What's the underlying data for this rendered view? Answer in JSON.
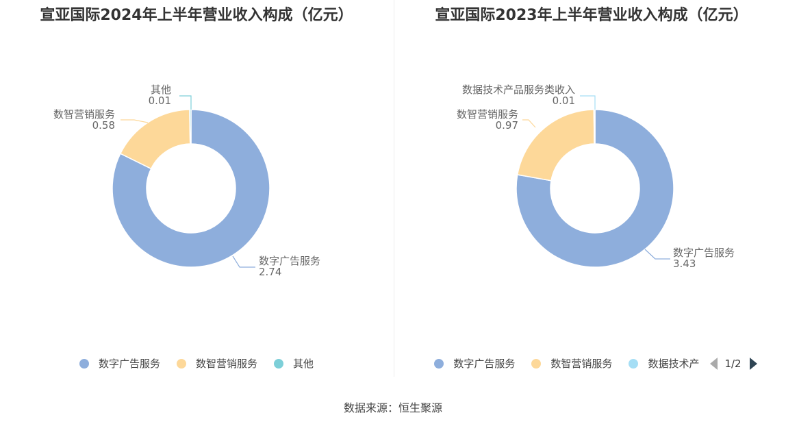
{
  "source": "数据来源：恒生聚源",
  "chart_data": [
    {
      "type": "pie",
      "title": "宣亚国际2024年上半年营业收入构成（亿元）",
      "categories": [
        "数字广告服务",
        "数智营销服务",
        "其他"
      ],
      "values": [
        2.74,
        0.58,
        0.01
      ],
      "value_labels": [
        "2.74",
        "0.58",
        "0.01"
      ],
      "colors": [
        "#8eaedc",
        "#fdd899",
        "#7dcfd8"
      ],
      "legend": [
        "数字广告服务",
        "数智营销服务",
        "其他"
      ],
      "legend_position": "bottom"
    },
    {
      "type": "pie",
      "title": "宣亚国际2023年上半年营业收入构成（亿元）",
      "categories": [
        "数字广告服务",
        "数智营销服务",
        "数据技术产品服务类收入"
      ],
      "values": [
        3.43,
        0.97,
        0.01
      ],
      "value_labels": [
        "3.43",
        "0.97",
        "0.01"
      ],
      "colors": [
        "#8eaedc",
        "#fdd899",
        "#a5def5"
      ],
      "legend": [
        "数字广告服务",
        "数智营销服务",
        "数据技术产"
      ],
      "legend_position": "bottom",
      "legend_page": "1/2"
    }
  ]
}
